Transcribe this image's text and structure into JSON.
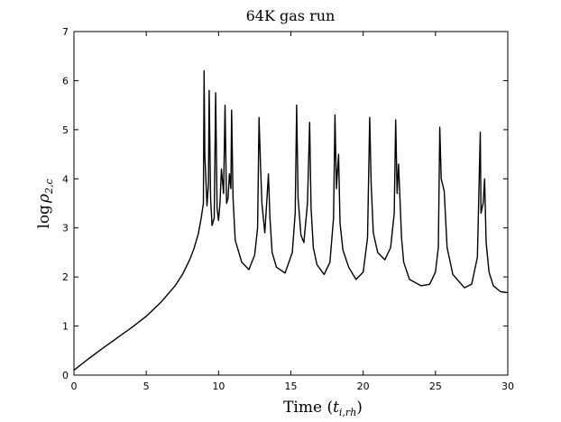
{
  "chart_data": {
    "type": "line",
    "title": "64K gas run",
    "xlabel": "Time (t_{i,rh})",
    "xlabel_main": "Time (",
    "xlabel_sym": "t",
    "xlabel_sub": "i,rh",
    "xlabel_close": ")",
    "ylabel": "log ρ_{2,c}",
    "ylabel_main": "log",
    "ylabel_sym": "ρ",
    "ylabel_sub": "2,c",
    "xlim": [
      0,
      30
    ],
    "ylim": [
      0,
      7
    ],
    "xticks": [
      0,
      5,
      10,
      15,
      20,
      25,
      30
    ],
    "yticks": [
      0,
      1,
      2,
      3,
      4,
      5,
      6,
      7
    ],
    "xtick_labels": [
      "0",
      "5",
      "10",
      "15",
      "20",
      "25",
      "30"
    ],
    "ytick_labels": [
      "0",
      "1",
      "2",
      "3",
      "4",
      "5",
      "6",
      "7"
    ],
    "grid": false,
    "legend": "none",
    "line_color": "#000000",
    "series": [
      {
        "x": [
          0.0,
          1.0,
          2.0,
          3.0,
          4.0,
          5.0,
          6.0,
          7.0,
          7.5,
          8.0,
          8.3,
          8.6,
          8.8,
          8.95,
          9.0,
          9.05,
          9.2,
          9.3,
          9.35,
          9.45,
          9.55,
          9.7,
          9.8,
          9.9,
          10.0,
          10.1,
          10.2,
          10.35,
          10.45,
          10.55,
          10.65,
          10.75,
          10.85,
          10.9,
          11.0,
          11.15,
          11.6,
          12.1,
          12.5,
          12.7,
          12.8,
          12.9,
          13.0,
          13.2,
          13.35,
          13.45,
          13.55,
          13.7,
          14.0,
          14.6,
          15.1,
          15.3,
          15.4,
          15.5,
          15.7,
          15.9,
          16.15,
          16.3,
          16.4,
          16.55,
          16.8,
          17.3,
          17.7,
          17.95,
          18.05,
          18.15,
          18.3,
          18.4,
          18.6,
          19.0,
          19.5,
          20.0,
          20.3,
          20.45,
          20.55,
          20.7,
          21.0,
          21.5,
          21.9,
          22.15,
          22.25,
          22.35,
          22.45,
          22.65,
          22.8,
          23.2,
          24.0,
          24.6,
          25.0,
          25.2,
          25.3,
          25.4,
          25.6,
          25.8,
          26.2,
          27.0,
          27.5,
          27.9,
          28.1,
          28.15,
          28.3,
          28.4,
          28.5,
          28.7,
          29.0,
          29.5,
          30.0
        ],
        "y": [
          0.1,
          0.33,
          0.55,
          0.76,
          0.97,
          1.2,
          1.48,
          1.82,
          2.05,
          2.35,
          2.58,
          2.88,
          3.2,
          3.5,
          6.2,
          4.5,
          3.45,
          3.9,
          5.8,
          3.6,
          3.05,
          3.2,
          5.75,
          3.4,
          3.15,
          3.5,
          4.2,
          3.7,
          5.5,
          3.5,
          3.6,
          4.1,
          3.8,
          5.4,
          3.6,
          2.75,
          2.3,
          2.15,
          2.45,
          3.0,
          5.25,
          4.3,
          3.5,
          2.9,
          3.6,
          4.1,
          3.2,
          2.5,
          2.2,
          2.08,
          2.5,
          3.3,
          5.5,
          3.6,
          2.85,
          2.7,
          3.5,
          5.15,
          3.4,
          2.6,
          2.25,
          2.05,
          2.3,
          3.2,
          5.3,
          3.8,
          4.5,
          3.1,
          2.55,
          2.2,
          1.95,
          2.1,
          2.8,
          5.25,
          3.9,
          2.9,
          2.5,
          2.35,
          2.6,
          3.3,
          5.2,
          3.7,
          4.3,
          2.8,
          2.3,
          1.95,
          1.82,
          1.85,
          2.1,
          2.6,
          5.05,
          4.0,
          3.75,
          2.6,
          2.05,
          1.78,
          1.85,
          2.4,
          4.95,
          3.3,
          3.5,
          4.0,
          2.7,
          2.1,
          1.82,
          1.7,
          1.68
        ]
      }
    ]
  }
}
